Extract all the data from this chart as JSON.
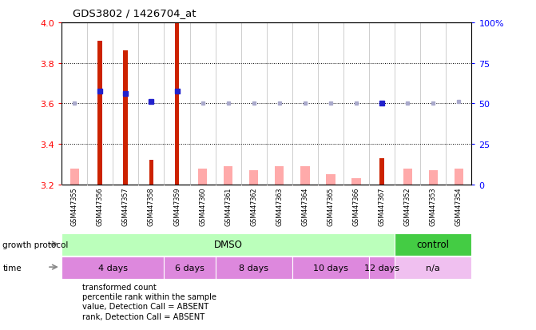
{
  "title": "GDS3802 / 1426704_at",
  "samples": [
    "GSM447355",
    "GSM447356",
    "GSM447357",
    "GSM447358",
    "GSM447359",
    "GSM447360",
    "GSM447361",
    "GSM447362",
    "GSM447363",
    "GSM447364",
    "GSM447365",
    "GSM447366",
    "GSM447367",
    "GSM447352",
    "GSM447353",
    "GSM447354"
  ],
  "red_values": [
    null,
    3.91,
    3.86,
    3.32,
    4.0,
    null,
    null,
    null,
    null,
    null,
    null,
    null,
    3.33,
    null,
    null,
    null
  ],
  "pink_values": [
    3.28,
    3.2,
    3.2,
    3.2,
    3.2,
    3.28,
    3.29,
    3.27,
    3.29,
    3.29,
    3.25,
    3.23,
    3.2,
    3.28,
    3.27,
    3.28
  ],
  "blue_values": [
    null,
    3.66,
    3.65,
    3.61,
    3.66,
    null,
    null,
    null,
    null,
    null,
    null,
    null,
    3.6,
    null,
    null,
    null
  ],
  "lightblue_values": [
    3.6,
    null,
    null,
    null,
    null,
    3.6,
    3.6,
    3.6,
    3.6,
    3.6,
    3.6,
    3.6,
    null,
    3.6,
    3.6,
    3.61
  ],
  "ylim_left": [
    3.2,
    4.0
  ],
  "ylim_right": [
    0,
    100
  ],
  "yticks_left": [
    3.2,
    3.4,
    3.6,
    3.8,
    4.0
  ],
  "yticks_right": [
    0,
    25,
    50,
    75,
    100
  ],
  "growth_protocol": {
    "DMSO": [
      0,
      13
    ],
    "control": [
      13,
      16
    ]
  },
  "time_groups": [
    {
      "label": "4 days",
      "start": 0,
      "end": 4,
      "color": "#dd88dd"
    },
    {
      "label": "6 days",
      "start": 4,
      "end": 6,
      "color": "#dd88dd"
    },
    {
      "label": "8 days",
      "start": 6,
      "end": 9,
      "color": "#dd88dd"
    },
    {
      "label": "10 days",
      "start": 9,
      "end": 12,
      "color": "#dd88dd"
    },
    {
      "label": "12 days",
      "start": 12,
      "end": 13,
      "color": "#dd88dd"
    },
    {
      "label": "n/a",
      "start": 13,
      "end": 16,
      "color": "#f0c0f0"
    }
  ],
  "red_color": "#cc2200",
  "pink_color": "#ffaaaa",
  "blue_color": "#2222cc",
  "lightblue_color": "#aaaacc",
  "dmso_color": "#bbffbb",
  "control_color": "#44cc44",
  "gray_color": "#cccccc",
  "sample_bg_color": "#cccccc",
  "bar_width": 0.35,
  "red_bar_width": 0.18
}
